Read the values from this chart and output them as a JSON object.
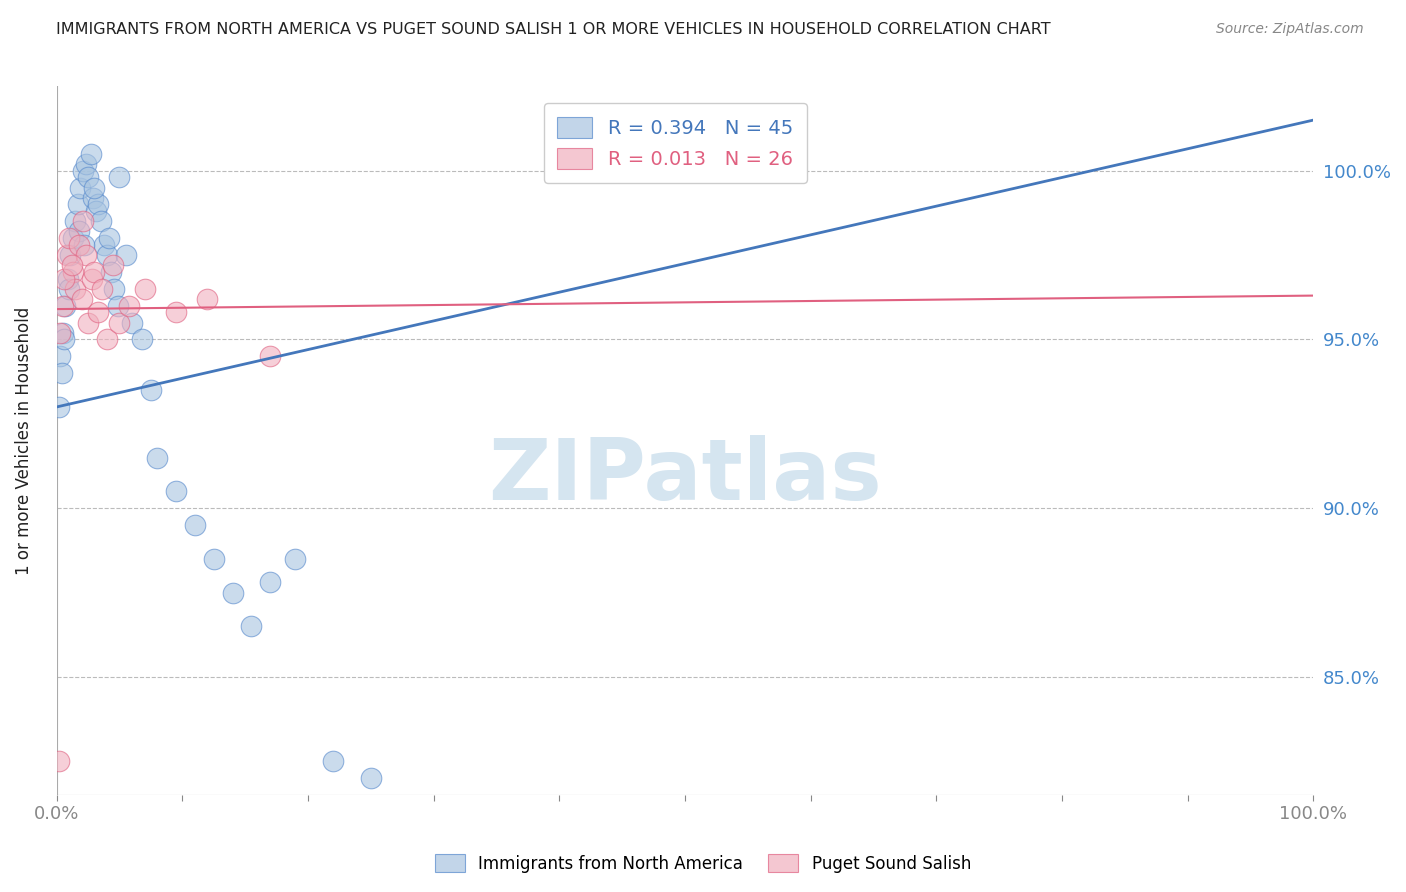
{
  "title": "IMMIGRANTS FROM NORTH AMERICA VS PUGET SOUND SALISH 1 OR MORE VEHICLES IN HOUSEHOLD CORRELATION CHART",
  "source": "Source: ZipAtlas.com",
  "xlabel": "",
  "ylabel": "1 or more Vehicles in Household",
  "blue_label": "Immigrants from North America",
  "pink_label": "Puget Sound Salish",
  "blue_R": 0.394,
  "blue_N": 45,
  "pink_R": 0.013,
  "pink_N": 26,
  "xlim": [
    0.0,
    100.0
  ],
  "ylim": [
    81.5,
    102.5
  ],
  "yticks": [
    85.0,
    90.0,
    95.0,
    100.0
  ],
  "xtick_labels_show": [
    "0.0%",
    "100.0%"
  ],
  "xtick_positions_show": [
    0.0,
    100.0
  ],
  "xtick_minor": [
    10.0,
    20.0,
    30.0,
    40.0,
    50.0,
    60.0,
    70.0,
    80.0,
    90.0
  ],
  "blue_scatter_x": [
    0.3,
    0.5,
    0.7,
    0.9,
    1.1,
    1.3,
    1.5,
    1.7,
    1.9,
    2.1,
    2.3,
    2.5,
    2.7,
    2.9,
    3.1,
    3.3,
    3.5,
    3.8,
    4.0,
    4.3,
    4.6,
    4.9,
    5.5,
    6.0,
    6.8,
    7.5,
    8.0,
    9.5,
    11.0,
    12.5,
    14.0,
    15.5,
    17.0,
    19.0,
    22.0,
    25.0,
    0.2,
    0.4,
    0.6,
    1.0,
    1.8,
    2.2,
    3.0,
    4.2,
    5.0
  ],
  "blue_scatter_y": [
    94.5,
    95.2,
    96.0,
    96.8,
    97.5,
    98.0,
    98.5,
    99.0,
    99.5,
    100.0,
    100.2,
    99.8,
    100.5,
    99.2,
    98.8,
    99.0,
    98.5,
    97.8,
    97.5,
    97.0,
    96.5,
    96.0,
    97.5,
    95.5,
    95.0,
    93.5,
    91.5,
    90.5,
    89.5,
    88.5,
    87.5,
    86.5,
    87.8,
    88.5,
    82.5,
    82.0,
    93.0,
    94.0,
    95.0,
    96.5,
    98.2,
    97.8,
    99.5,
    98.0,
    99.8
  ],
  "pink_scatter_x": [
    0.2,
    0.5,
    0.8,
    1.0,
    1.3,
    1.5,
    1.8,
    2.0,
    2.3,
    2.5,
    2.8,
    3.0,
    3.3,
    3.6,
    4.0,
    4.5,
    5.0,
    5.8,
    7.0,
    9.5,
    12.0,
    17.0,
    0.3,
    0.6,
    1.2,
    2.1
  ],
  "pink_scatter_y": [
    82.5,
    96.0,
    97.5,
    98.0,
    97.0,
    96.5,
    97.8,
    96.2,
    97.5,
    95.5,
    96.8,
    97.0,
    95.8,
    96.5,
    95.0,
    97.2,
    95.5,
    96.0,
    96.5,
    95.8,
    96.2,
    94.5,
    95.2,
    96.8,
    97.2,
    98.5
  ],
  "blue_line_x": [
    0.0,
    100.0
  ],
  "blue_line_y": [
    93.0,
    101.5
  ],
  "pink_line_x": [
    0.0,
    100.0
  ],
  "pink_line_y": [
    95.9,
    96.3
  ],
  "title_color": "#222222",
  "blue_color": "#a8c4e0",
  "pink_color": "#f0b0be",
  "blue_edge_color": "#5588cc",
  "pink_edge_color": "#e06080",
  "blue_line_color": "#4477bb",
  "pink_line_color": "#e06080",
  "axis_color": "#4488cc",
  "grid_color": "#bbbbbb",
  "watermark_text": "ZIPatlas",
  "watermark_color": "#d5e5f0",
  "background_color": "#ffffff",
  "legend_blue_text": "R = 0.394   N = 45",
  "legend_pink_text": "R = 0.013   N = 26"
}
